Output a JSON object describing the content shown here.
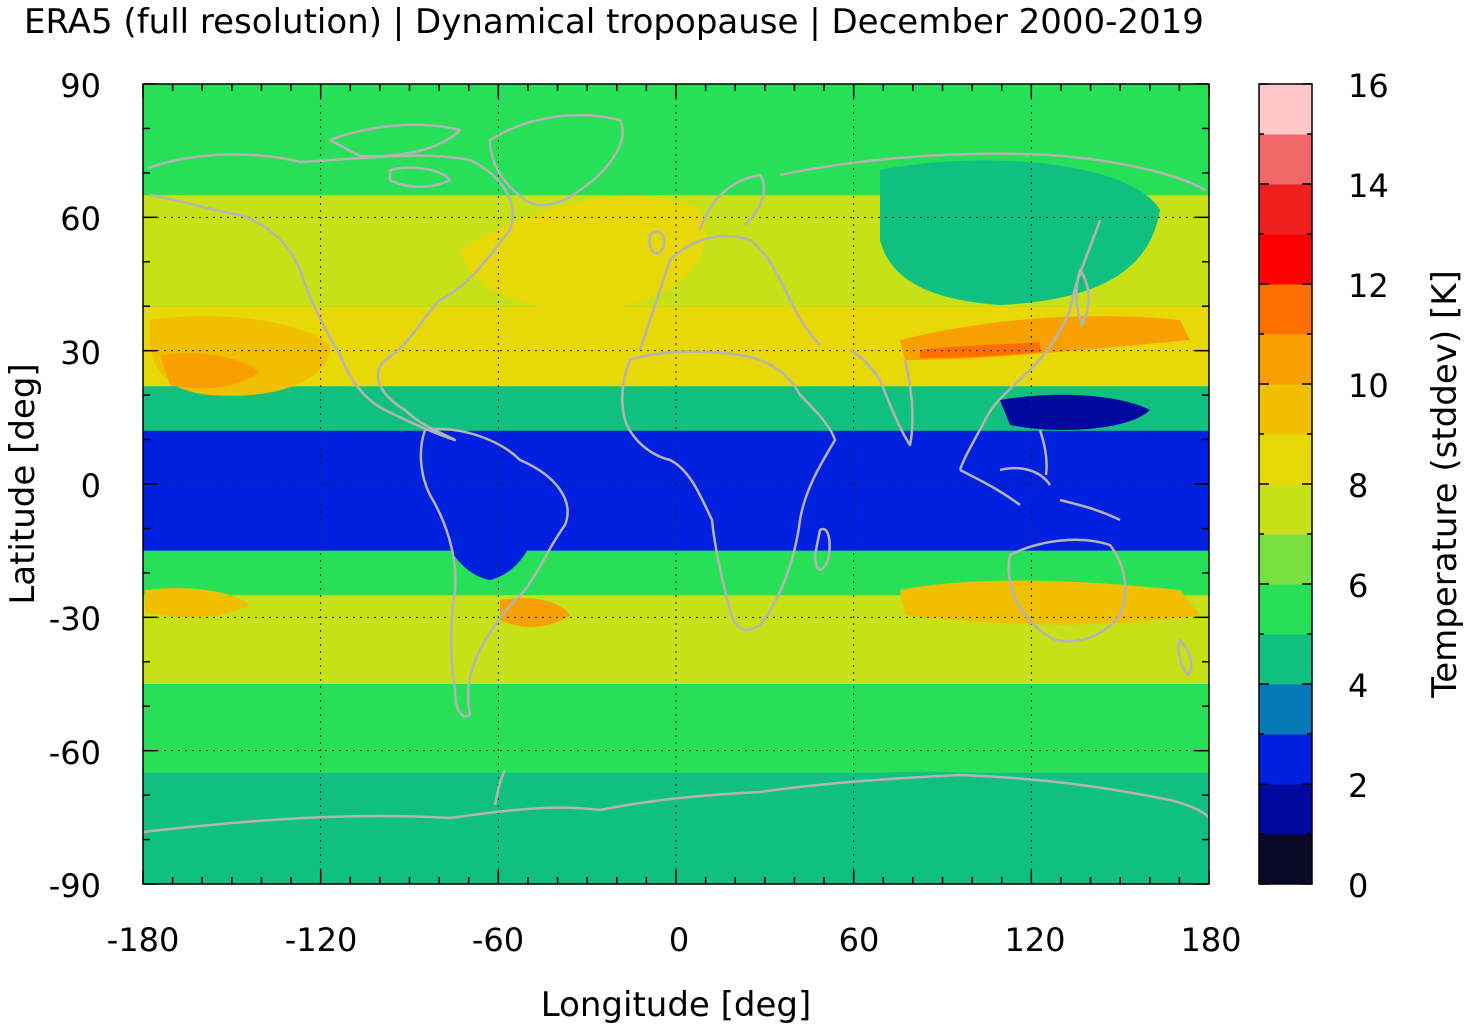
{
  "title": "ERA5 (full resolution) | Dynamical tropopause | December 2000-2019",
  "map": {
    "projection": "equirectangular",
    "lon_range": [
      -180,
      180
    ],
    "lat_range": [
      -90,
      90
    ],
    "grid": true,
    "coastline_color": "#b4b4b4",
    "x_axis": {
      "label": "Longitude [deg]",
      "ticks": [
        "-180",
        "-120",
        "-60",
        "0",
        "60",
        "120",
        "180"
      ]
    },
    "y_axis": {
      "label": "Latitude [deg]",
      "ticks": [
        "90",
        "60",
        "30",
        "0",
        "-30",
        "-60",
        "-90"
      ]
    },
    "field_description_bands": [
      {
        "lat_from": -90,
        "lat_to": -65,
        "level": 4.8
      },
      {
        "lat_from": -65,
        "lat_to": -45,
        "level": 5.8
      },
      {
        "lat_from": -45,
        "lat_to": -25,
        "level": 7.2
      },
      {
        "lat_from": -25,
        "lat_to": -15,
        "level": 5.5
      },
      {
        "lat_from": -15,
        "lat_to": 12,
        "level": 2.2
      },
      {
        "lat_from": 12,
        "lat_to": 22,
        "level": 4.5
      },
      {
        "lat_from": 22,
        "lat_to": 40,
        "level": 8.5
      },
      {
        "lat_from": 40,
        "lat_to": 65,
        "level": 7.0
      },
      {
        "lat_from": 65,
        "lat_to": 90,
        "level": 5.8
      }
    ]
  },
  "colorbar": {
    "label": "Temperature (stddev) [K]",
    "range": [
      0,
      16
    ],
    "ticks": [
      "0",
      "2",
      "4",
      "6",
      "8",
      "10",
      "12",
      "14",
      "16"
    ],
    "colors": [
      "#0a0a28",
      "#0008a0",
      "#0020e0",
      "#0878b8",
      "#10c080",
      "#28e058",
      "#78e040",
      "#c8e018",
      "#e8d808",
      "#f0c000",
      "#f8a000",
      "#ff7000",
      "#ff0000",
      "#f02020",
      "#f06868",
      "#ffc8c8"
    ]
  }
}
